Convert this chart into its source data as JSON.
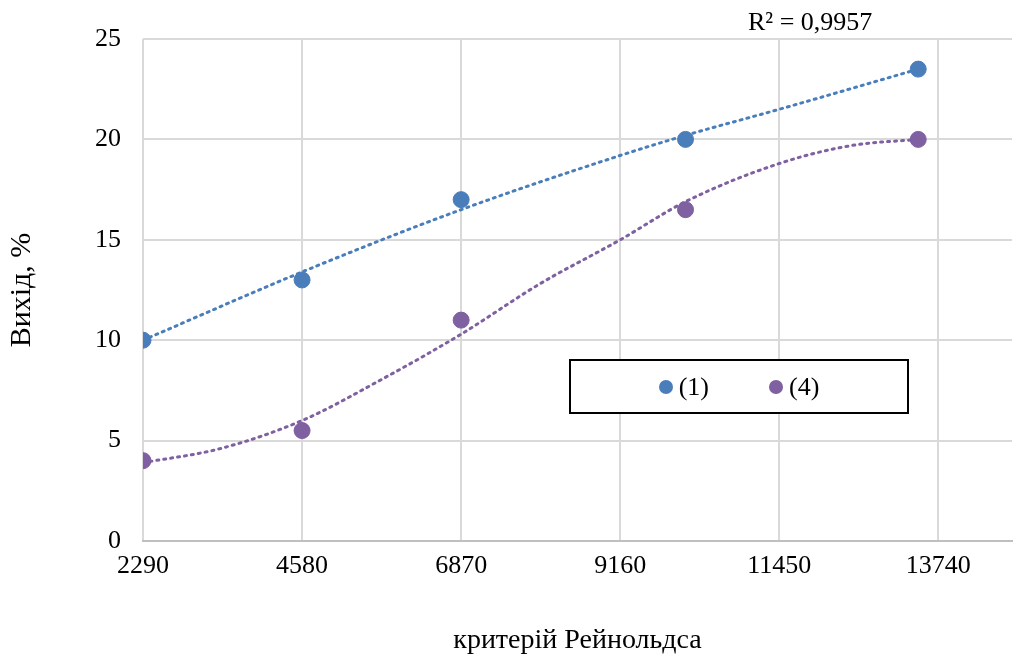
{
  "chart_data": {
    "type": "scatter",
    "xlabel": "критерій Рейнольдса",
    "ylabel": "Вихід, %",
    "xlim": [
      2290,
      14800
    ],
    "xticks": [
      2290,
      4580,
      6870,
      9160,
      11450,
      13740
    ],
    "ylim": [
      0,
      25
    ],
    "yticks": [
      0,
      5,
      10,
      15,
      20,
      25
    ],
    "grid": true,
    "legend": "right",
    "marker": "circle",
    "annotations": [
      "R² = 0,9957"
    ],
    "series": [
      {
        "name": "(1)",
        "color": "#4a7ebb",
        "x": [
          2290,
          4580,
          6870,
          10100,
          13450
        ],
        "values": [
          10,
          13,
          17,
          20,
          23.5
        ]
      },
      {
        "name": "(4)",
        "color": "#7f60a0",
        "x": [
          2290,
          4580,
          6870,
          10100,
          13450
        ],
        "values": [
          4,
          5.5,
          11,
          16.5,
          20
        ]
      },
      {
        "type": "line",
        "color": "#4a7ebb",
        "line_style": "dotted",
        "marker": "none",
        "x": [
          2290,
          4580,
          6870,
          9160,
          10100,
          11450,
          13450
        ],
        "values": [
          10,
          13.4,
          16.5,
          19.2,
          20.2,
          21.5,
          23.5
        ]
      },
      {
        "type": "line",
        "color": "#7f60a0",
        "line_style": "dotted",
        "marker": "none",
        "x": [
          2290,
          3400,
          4580,
          5700,
          6870,
          8000,
          9160,
          10100,
          11450,
          12500,
          13450
        ],
        "values": [
          3.9,
          4.6,
          6,
          8,
          10.3,
          12.8,
          15,
          16.9,
          18.8,
          19.7,
          20
        ]
      }
    ]
  }
}
